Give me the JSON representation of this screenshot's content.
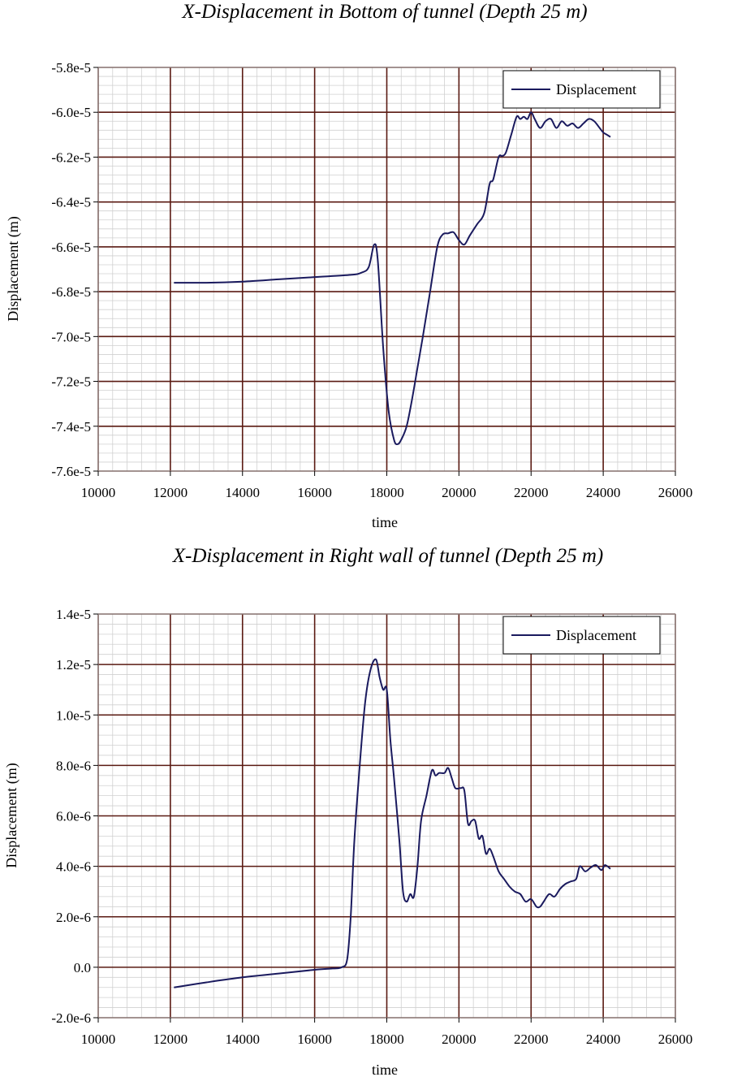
{
  "chart_data": [
    {
      "type": "line",
      "title": "X-Displacement in Bottom of tunnel (Depth 25 m)",
      "xlabel": "time",
      "ylabel": "Displacement (m)",
      "xlim": [
        10000,
        26000
      ],
      "ylim": [
        -7.6e-05,
        -5.8e-05
      ],
      "xticks": [
        10000,
        12000,
        14000,
        16000,
        18000,
        20000,
        22000,
        24000,
        26000
      ],
      "xtick_labels": [
        "10000",
        "12000",
        "14000",
        "16000",
        "18000",
        "20000",
        "22000",
        "24000",
        "26000"
      ],
      "yticks": [
        -7.6e-05,
        -7.4e-05,
        -7.2e-05,
        -7e-05,
        -6.8e-05,
        -6.6e-05,
        -6.4e-05,
        -6.2e-05,
        -6e-05,
        -5.8e-05
      ],
      "ytick_labels": [
        "-7.6e-5",
        "-7.4e-5",
        "-7.2e-5",
        "-7.0e-5",
        "-6.8e-5",
        "-6.6e-5",
        "-6.4e-5",
        "-6.2e-5",
        "-6.0e-5",
        "-5.8e-5"
      ],
      "grid": true,
      "legend_position": "top-right",
      "series": [
        {
          "name": "Displacement",
          "color": "#1a1a5e",
          "x": [
            12100,
            13000,
            14000,
            15000,
            16000,
            17000,
            17300,
            17500,
            17650,
            17750,
            17900,
            18050,
            18200,
            18300,
            18400,
            18550,
            18700,
            18850,
            19000,
            19200,
            19400,
            19550,
            19700,
            19850,
            20000,
            20150,
            20300,
            20500,
            20700,
            20850,
            20950,
            21100,
            21200,
            21300,
            21450,
            21600,
            21700,
            21800,
            21900,
            22000,
            22100,
            22250,
            22400,
            22550,
            22700,
            22850,
            23000,
            23150,
            23300,
            23450,
            23600,
            23750,
            23900,
            24000,
            24100,
            24200
          ],
          "y": [
            -6.76e-05,
            -6.76e-05,
            -6.755e-05,
            -6.745e-05,
            -6.735e-05,
            -6.725e-05,
            -6.715e-05,
            -6.69e-05,
            -6.59e-05,
            -6.66e-05,
            -7.05e-05,
            -7.33e-05,
            -7.46e-05,
            -7.48e-05,
            -7.46e-05,
            -7.4e-05,
            -7.28e-05,
            -7.14e-05,
            -7e-05,
            -6.8e-05,
            -6.6e-05,
            -6.545e-05,
            -6.54e-05,
            -6.535e-05,
            -6.57e-05,
            -6.59e-05,
            -6.55e-05,
            -6.5e-05,
            -6.45e-05,
            -6.32e-05,
            -6.3e-05,
            -6.2e-05,
            -6.195e-05,
            -6.18e-05,
            -6.1e-05,
            -6.02e-05,
            -6.03e-05,
            -6.02e-05,
            -6.03e-05,
            -6e-05,
            -6.03e-05,
            -6.07e-05,
            -6.04e-05,
            -6.03e-05,
            -6.07e-05,
            -6.04e-05,
            -6.06e-05,
            -6.05e-05,
            -6.07e-05,
            -6.05e-05,
            -6.03e-05,
            -6.04e-05,
            -6.07e-05,
            -6.09e-05,
            -6.1e-05,
            -6.11e-05
          ]
        }
      ]
    },
    {
      "type": "line",
      "title": "X-Displacement in Right wall of tunnel (Depth 25 m)",
      "xlabel": "time",
      "ylabel": "Displacement (m)",
      "xlim": [
        10000,
        26000
      ],
      "ylim": [
        -2e-06,
        1.4e-05
      ],
      "xticks": [
        10000,
        12000,
        14000,
        16000,
        18000,
        20000,
        22000,
        24000,
        26000
      ],
      "xtick_labels": [
        "10000",
        "12000",
        "14000",
        "16000",
        "18000",
        "20000",
        "22000",
        "24000",
        "26000"
      ],
      "yticks": [
        -2e-06,
        0,
        2e-06,
        4e-06,
        6e-06,
        8e-06,
        1e-05,
        1.2e-05,
        1.4e-05
      ],
      "ytick_labels": [
        "-2.0e-6",
        "0.0",
        "2.0e-6",
        "4.0e-6",
        "6.0e-6",
        "8.0e-6",
        "1.0e-5",
        "1.2e-5",
        "1.4e-5"
      ],
      "grid": true,
      "legend_position": "top-right",
      "series": [
        {
          "name": "Displacement",
          "color": "#1a1a5e",
          "x": [
            12100,
            13000,
            14000,
            15000,
            16000,
            16500,
            16750,
            16900,
            17000,
            17100,
            17250,
            17400,
            17550,
            17700,
            17800,
            17900,
            18000,
            18100,
            18200,
            18350,
            18450,
            18550,
            18650,
            18750,
            18850,
            18950,
            19100,
            19250,
            19350,
            19450,
            19600,
            19700,
            19800,
            19900,
            20050,
            20150,
            20250,
            20350,
            20450,
            20550,
            20650,
            20750,
            20850,
            20950,
            21100,
            21250,
            21400,
            21550,
            21700,
            21850,
            22000,
            22150,
            22250,
            22350,
            22500,
            22650,
            22800,
            22950,
            23100,
            23250,
            23350,
            23500,
            23650,
            23800,
            23950,
            24050,
            24200
          ],
          "y": [
            -8e-07,
            -6e-07,
            -4e-07,
            -2.5e-07,
            -1e-07,
            -5e-08,
            0,
            3e-07,
            2e-06,
            5e-06,
            8e-06,
            1.05e-05,
            1.18e-05,
            1.22e-05,
            1.15e-05,
            1.1e-05,
            1.1e-05,
            9e-06,
            7.5e-06,
            5e-06,
            3e-06,
            2.6e-06,
            2.9e-06,
            2.8e-06,
            4e-06,
            5.8e-06,
            6.8e-06,
            7.8e-06,
            7.6e-06,
            7.7e-06,
            7.7e-06,
            7.9e-06,
            7.5e-06,
            7.1e-06,
            7.1e-06,
            7e-06,
            5.7e-06,
            5.8e-06,
            5.8e-06,
            5.1e-06,
            5.2e-06,
            4.5e-06,
            4.7e-06,
            4.4e-06,
            3.8e-06,
            3.5e-06,
            3.2e-06,
            3e-06,
            2.9e-06,
            2.6e-06,
            2.7e-06,
            2.4e-06,
            2.4e-06,
            2.6e-06,
            2.9e-06,
            2.8e-06,
            3.1e-06,
            3.3e-06,
            3.4e-06,
            3.5e-06,
            4e-06,
            3.8e-06,
            3.95e-06,
            4.05e-06,
            3.85e-06,
            4.05e-06,
            3.9e-06
          ]
        }
      ]
    }
  ]
}
